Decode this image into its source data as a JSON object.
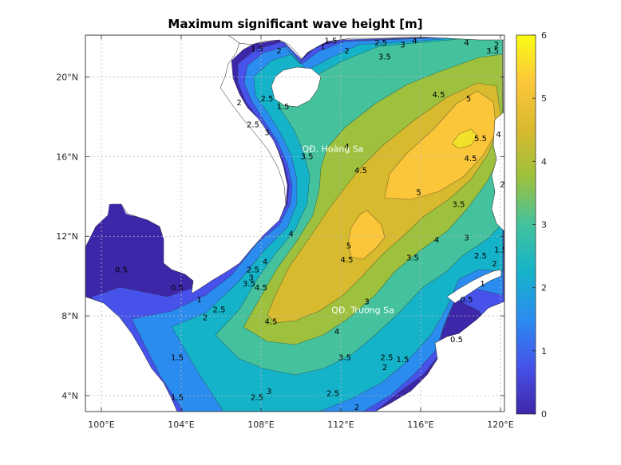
{
  "chart_data": {
    "type": "heatmap",
    "title": "Maximum significant wave height [m]",
    "xlim": [
      99.2,
      120.2
    ],
    "ylim": [
      3.2,
      22.1
    ],
    "x_ticks": [
      {
        "value": 100,
        "label": "100°E"
      },
      {
        "value": 104,
        "label": "104°E"
      },
      {
        "value": 108,
        "label": "108°E"
      },
      {
        "value": 112,
        "label": "112°E"
      },
      {
        "value": 116,
        "label": "116°E"
      },
      {
        "value": 120,
        "label": "120°E"
      }
    ],
    "y_ticks": [
      {
        "value": 4,
        "label": "4°N"
      },
      {
        "value": 8,
        "label": "8°N"
      },
      {
        "value": 12,
        "label": "12°N"
      },
      {
        "value": 16,
        "label": "16°N"
      },
      {
        "value": 20,
        "label": "20°N"
      }
    ],
    "grid": true,
    "colorbar": {
      "range": [
        0,
        6
      ],
      "ticks": [
        0,
        1,
        2,
        3,
        4,
        5,
        6
      ],
      "colors": [
        "#3e26a8",
        "#4652e9",
        "#2b8cf0",
        "#15b3c9",
        "#43c29d",
        "#9dc13d",
        "#d8ba2f",
        "#fcc63a",
        "#f9fb14"
      ]
    },
    "contour_levels": [
      0.5,
      1,
      1.5,
      2,
      2.5,
      3,
      3.5,
      4,
      4.5,
      5,
      5.5
    ],
    "contour_labels": [
      {
        "text": "0.5",
        "lon": 101.0,
        "lat": 10.3
      },
      {
        "text": "0.5",
        "lon": 103.8,
        "lat": 9.4
      },
      {
        "text": "1",
        "lon": 104.9,
        "lat": 8.8
      },
      {
        "text": "1.5",
        "lon": 103.8,
        "lat": 5.9
      },
      {
        "text": "1.5",
        "lon": 103.8,
        "lat": 3.9
      },
      {
        "text": "2",
        "lon": 105.2,
        "lat": 7.9
      },
      {
        "text": "2.5",
        "lon": 105.9,
        "lat": 8.3
      },
      {
        "text": "2.5",
        "lon": 107.8,
        "lat": 3.9
      },
      {
        "text": "3",
        "lon": 108.4,
        "lat": 4.2
      },
      {
        "text": "3.5",
        "lon": 107.4,
        "lat": 9.6
      },
      {
        "text": "3",
        "lon": 107.5,
        "lat": 9.9
      },
      {
        "text": "2.5",
        "lon": 107.6,
        "lat": 10.3
      },
      {
        "text": "4",
        "lon": 108.2,
        "lat": 10.7
      },
      {
        "text": "4.5",
        "lon": 108.0,
        "lat": 9.4
      },
      {
        "text": "4",
        "lon": 109.5,
        "lat": 12.1
      },
      {
        "text": "4.5",
        "lon": 108.5,
        "lat": 7.7
      },
      {
        "text": "4",
        "lon": 111.8,
        "lat": 7.2
      },
      {
        "text": "3.5",
        "lon": 112.2,
        "lat": 5.9
      },
      {
        "text": "3",
        "lon": 113.3,
        "lat": 8.7
      },
      {
        "text": "2.5",
        "lon": 114.3,
        "lat": 5.9
      },
      {
        "text": "2",
        "lon": 114.2,
        "lat": 5.4
      },
      {
        "text": "1.5",
        "lon": 115.1,
        "lat": 5.8
      },
      {
        "text": "2",
        "lon": 112.8,
        "lat": 3.4
      },
      {
        "text": "2.5",
        "lon": 111.6,
        "lat": 4.1
      },
      {
        "text": "5",
        "lon": 112.4,
        "lat": 11.5
      },
      {
        "text": "4.5",
        "lon": 112.3,
        "lat": 10.8
      },
      {
        "text": "3.5",
        "lon": 115.6,
        "lat": 10.9
      },
      {
        "text": "4",
        "lon": 116.8,
        "lat": 11.8
      },
      {
        "text": "3",
        "lon": 118.3,
        "lat": 11.9
      },
      {
        "text": "2.5",
        "lon": 119.0,
        "lat": 11.0
      },
      {
        "text": "2",
        "lon": 119.7,
        "lat": 10.6
      },
      {
        "text": "1.5",
        "lon": 120.0,
        "lat": 11.3
      },
      {
        "text": "1",
        "lon": 119.1,
        "lat": 9.6
      },
      {
        "text": "0.5",
        "lon": 118.3,
        "lat": 8.8
      },
      {
        "text": "0.5",
        "lon": 117.8,
        "lat": 6.8
      },
      {
        "text": "5",
        "lon": 115.9,
        "lat": 14.2
      },
      {
        "text": "4.5",
        "lon": 113.0,
        "lat": 15.3
      },
      {
        "text": "4",
        "lon": 112.3,
        "lat": 16.5
      },
      {
        "text": "3.5",
        "lon": 110.3,
        "lat": 16.0
      },
      {
        "text": "3.5",
        "lon": 117.9,
        "lat": 13.6
      },
      {
        "text": "4.5",
        "lon": 118.5,
        "lat": 15.9
      },
      {
        "text": "5.5",
        "lon": 119.0,
        "lat": 16.9
      },
      {
        "text": "4",
        "lon": 119.9,
        "lat": 17.1
      },
      {
        "text": "5",
        "lon": 118.4,
        "lat": 18.9
      },
      {
        "text": "4.5",
        "lon": 116.9,
        "lat": 19.1
      },
      {
        "text": "3.5",
        "lon": 114.2,
        "lat": 21.0
      },
      {
        "text": "3",
        "lon": 115.1,
        "lat": 21.6
      },
      {
        "text": "2.5",
        "lon": 114.0,
        "lat": 21.7
      },
      {
        "text": "4",
        "lon": 115.7,
        "lat": 21.8
      },
      {
        "text": "4",
        "lon": 118.3,
        "lat": 21.7
      },
      {
        "text": "3.5",
        "lon": 119.6,
        "lat": 21.3
      },
      {
        "text": "1.5",
        "lon": 111.5,
        "lat": 21.8
      },
      {
        "text": "1",
        "lon": 111.1,
        "lat": 21.5
      },
      {
        "text": "2",
        "lon": 112.3,
        "lat": 21.3
      },
      {
        "text": "2",
        "lon": 119.8,
        "lat": 21.6
      },
      {
        "text": "1.5",
        "lon": 107.8,
        "lat": 21.4
      },
      {
        "text": "2",
        "lon": 108.9,
        "lat": 21.3
      },
      {
        "text": "2.5",
        "lon": 108.3,
        "lat": 18.9
      },
      {
        "text": "2",
        "lon": 106.9,
        "lat": 18.7
      },
      {
        "text": "2.5",
        "lon": 107.6,
        "lat": 17.6
      },
      {
        "text": "1.5",
        "lon": 109.1,
        "lat": 18.5
      },
      {
        "text": "3",
        "lon": 108.3,
        "lat": 17.2
      },
      {
        "text": "2",
        "lon": 120.1,
        "lat": 14.6
      }
    ],
    "place_labels": [
      {
        "text": "QĐ. Hoàng Sa",
        "lon": 111.6,
        "lat": 16.4
      },
      {
        "text": "QĐ. Trường Sa",
        "lon": 113.1,
        "lat": 8.3
      }
    ]
  }
}
